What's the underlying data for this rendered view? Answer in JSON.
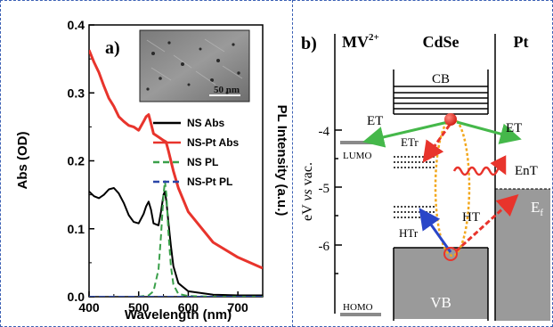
{
  "panel_a": {
    "label": "a)",
    "scale_bar": "50 nm",
    "chart_data": {
      "type": "line",
      "xlabel": "Wavelength (nm)",
      "ylabel_left": "Abs (OD)",
      "ylabel_right": "PL Intensity (a.u.)",
      "xlim": [
        400,
        750
      ],
      "ylim": [
        0,
        0.4
      ],
      "x_ticks": [
        "400",
        "500",
        "600",
        "700"
      ],
      "y_ticks": [
        "0.0",
        "0.1",
        "0.2",
        "0.3",
        "0.4"
      ],
      "legend_position": "right",
      "series": [
        {
          "name": "NS Abs",
          "color": "#000000",
          "dash": "solid",
          "x": [
            400,
            410,
            420,
            430,
            440,
            450,
            460,
            470,
            480,
            490,
            500,
            510,
            515,
            520,
            525,
            530,
            540,
            545,
            550,
            553,
            556,
            560,
            565,
            570,
            580,
            600,
            650,
            700,
            750
          ],
          "y": [
            0.155,
            0.148,
            0.145,
            0.15,
            0.158,
            0.16,
            0.152,
            0.138,
            0.12,
            0.11,
            0.108,
            0.122,
            0.133,
            0.14,
            0.128,
            0.108,
            0.105,
            0.125,
            0.15,
            0.155,
            0.14,
            0.11,
            0.075,
            0.045,
            0.02,
            0.008,
            0.003,
            0.002,
            0.002
          ]
        },
        {
          "name": "NS-Pt Abs",
          "color": "#e8342c",
          "dash": "solid",
          "x": [
            400,
            410,
            420,
            430,
            440,
            450,
            460,
            470,
            480,
            490,
            500,
            510,
            515,
            520,
            525,
            530,
            540,
            550,
            555,
            560,
            570,
            580,
            600,
            650,
            700,
            750
          ],
          "y": [
            0.363,
            0.345,
            0.33,
            0.31,
            0.292,
            0.28,
            0.265,
            0.258,
            0.252,
            0.25,
            0.245,
            0.258,
            0.265,
            0.268,
            0.255,
            0.24,
            0.235,
            0.23,
            0.228,
            0.215,
            0.185,
            0.16,
            0.125,
            0.08,
            0.058,
            0.042
          ]
        },
        {
          "name": "NS PL",
          "color": "#3aa04a",
          "dash": "dash",
          "x": [
            400,
            500,
            520,
            530,
            540,
            545,
            550,
            553,
            556,
            560,
            565,
            570,
            580,
            600,
            650,
            700,
            750
          ],
          "y": [
            0.0,
            0.0,
            0.002,
            0.008,
            0.04,
            0.09,
            0.15,
            0.17,
            0.15,
            0.095,
            0.045,
            0.018,
            0.004,
            0.001,
            0.0,
            0.0,
            0.0
          ]
        },
        {
          "name": "NS-Pt PL",
          "color": "#2a46a8",
          "dash": "dash",
          "x": [
            400,
            750
          ],
          "y": [
            0.0,
            0.0
          ]
        }
      ]
    }
  },
  "panel_b": {
    "label": "b)",
    "col_mv": "MV",
    "col_mv_sup": "2+",
    "col_cdse": "CdSe",
    "col_pt": "Pt",
    "yaxis_label_a": "eV ",
    "yaxis_label_b": "vs",
    "yaxis_label_c": " vac.",
    "ticks": [
      "-4",
      "-5",
      "-6"
    ],
    "cb": "CB",
    "vb": "VB",
    "lumo": "LUMO",
    "homo": "HOMO",
    "et_left": "ET",
    "et_right": "ET",
    "etr": "ETr",
    "ent": "EnT",
    "ht": "HT",
    "htr": "HTr",
    "ef": "E",
    "ef_sub": "f"
  }
}
